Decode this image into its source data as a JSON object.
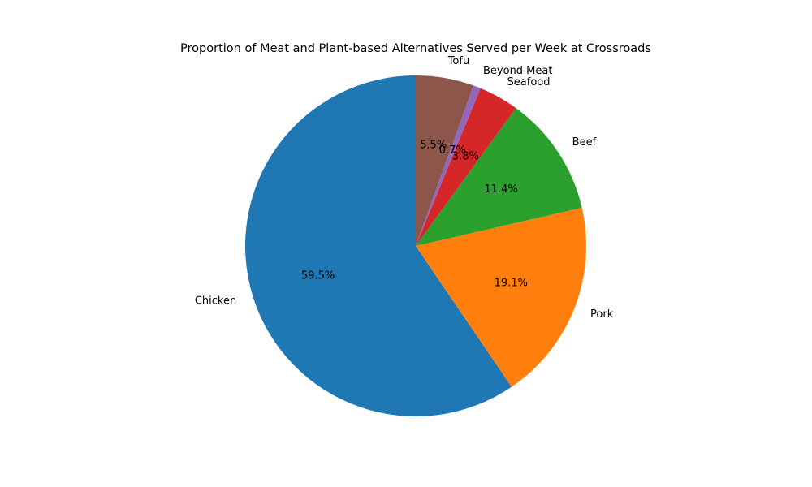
{
  "chart_data": {
    "type": "pie",
    "title": "Proportion of Meat and Plant-based Alternatives Served per Week at Crossroads",
    "start_angle_deg": 90,
    "direction": "counterclockwise",
    "slices": [
      {
        "label": "Chicken",
        "value": 59.5,
        "pct_label": "59.5%",
        "color": "#1f77b4"
      },
      {
        "label": "Pork",
        "value": 19.1,
        "pct_label": "19.1%",
        "color": "#ff7f0e"
      },
      {
        "label": "Beef",
        "value": 11.4,
        "pct_label": "11.4%",
        "color": "#2ca02c"
      },
      {
        "label": "Seafood",
        "value": 3.8,
        "pct_label": "3.8%",
        "color": "#d62728"
      },
      {
        "label": "Beyond Meat",
        "value": 0.7,
        "pct_label": "0.7%",
        "color": "#9467bd"
      },
      {
        "label": "Tofu",
        "value": 5.5,
        "pct_label": "5.5%",
        "color": "#8c564b"
      }
    ]
  }
}
